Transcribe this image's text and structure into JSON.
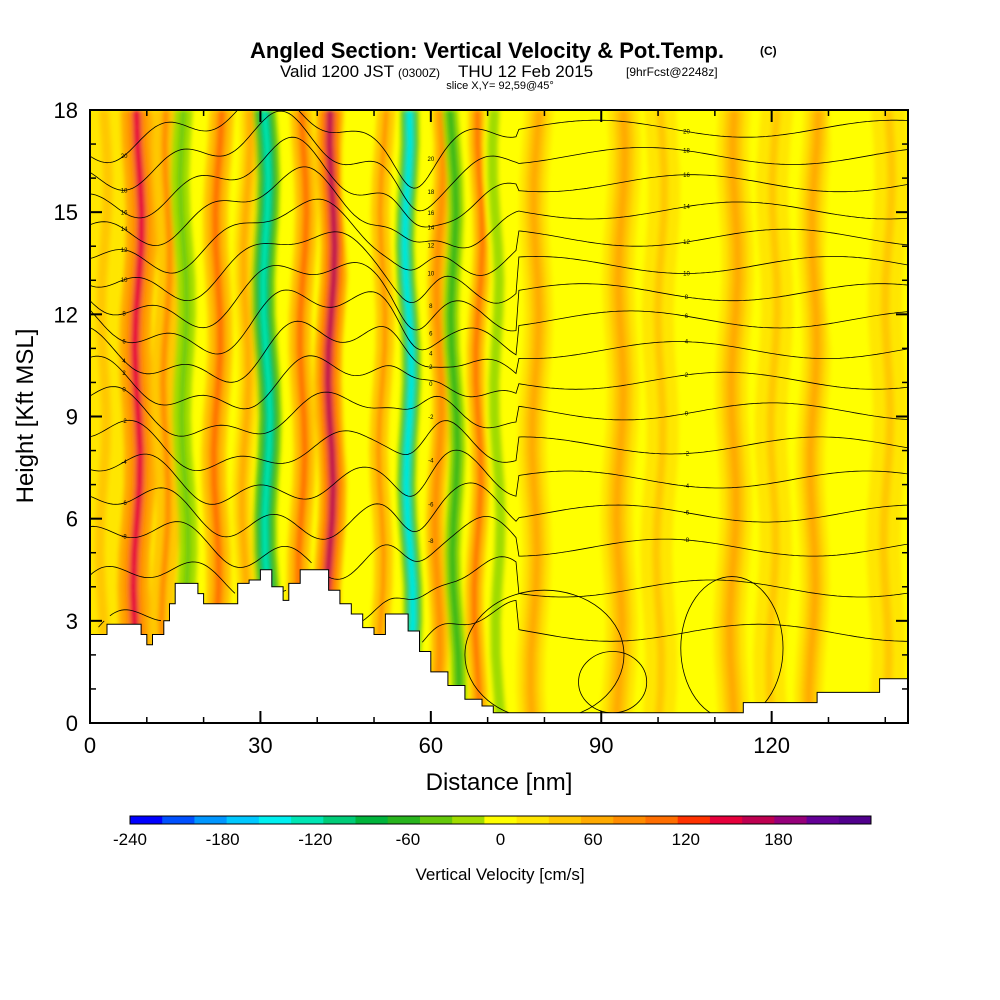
{
  "chart_data": {
    "type": "heatmap",
    "title": "Angled Section: Vertical Velocity & Pot.Temp.",
    "title_suffix": "(C)",
    "subtitle": {
      "valid": "Valid 1200 JST",
      "utc": "(0300Z)",
      "date": "THU 12 Feb 2015",
      "fcst": "[9hrFcst@2248z]"
    },
    "slice_info": "slice X,Y= 92,59@45°",
    "xlabel": "Distance [nm]",
    "ylabel": "Height [Kft MSL]",
    "xlim": [
      0,
      144
    ],
    "ylim": [
      0,
      18
    ],
    "xticks": [
      "0",
      "30",
      "60",
      "90",
      "120"
    ],
    "yticks": [
      "0",
      "3",
      "6",
      "9",
      "12",
      "15",
      "18"
    ],
    "xtick_values": [
      0,
      30,
      60,
      90,
      120
    ],
    "ytick_values": [
      0,
      3,
      6,
      9,
      12,
      15,
      18
    ],
    "minor_xticks": [
      10,
      20,
      40,
      50,
      70,
      80,
      100,
      110,
      130,
      140
    ],
    "colorbar": {
      "label": "Vertical Velocity [cm/s]",
      "range": [
        -240,
        220
      ],
      "step": 20,
      "ticks": [
        "-240",
        "-180",
        "-120",
        "-60",
        "0",
        "60",
        "120",
        "180"
      ],
      "tick_values": [
        -240,
        -180,
        -120,
        -60,
        0,
        60,
        120,
        180
      ],
      "colors": [
        "#0000ff",
        "#0050ff",
        "#0096ff",
        "#00c8ff",
        "#00f0f0",
        "#00e6b4",
        "#00cc78",
        "#00b43c",
        "#28b41e",
        "#64c80a",
        "#a0dc00",
        "#ffff00",
        "#ffe600",
        "#ffc800",
        "#ffaa00",
        "#ff8c00",
        "#ff6e00",
        "#ff3200",
        "#e6003c",
        "#be0050",
        "#96007a",
        "#640096",
        "#50008c"
      ]
    },
    "w_bands": [
      {
        "x": 2,
        "w": 3.5,
        "v": 20
      },
      {
        "x": 8,
        "w": 2.8,
        "v": 120
      },
      {
        "x": 13,
        "w": 2.2,
        "v": 60
      },
      {
        "x": 17,
        "w": 1.6,
        "v": -60
      },
      {
        "x": 22,
        "w": 2.2,
        "v": 80
      },
      {
        "x": 27,
        "w": 1.8,
        "v": 50
      },
      {
        "x": 31.5,
        "w": 2.0,
        "v": -140
      },
      {
        "x": 37,
        "w": 2.0,
        "v": 90
      },
      {
        "x": 42,
        "w": 2.4,
        "v": 140
      },
      {
        "x": 47,
        "w": 1.6,
        "v": -20
      },
      {
        "x": 51,
        "w": 1.6,
        "v": 60
      },
      {
        "x": 56.5,
        "w": 1.6,
        "v": -160
      },
      {
        "x": 61,
        "w": 1.6,
        "v": 70
      },
      {
        "x": 64.5,
        "w": 1.4,
        "v": -80
      },
      {
        "x": 68,
        "w": 1.6,
        "v": 90
      },
      {
        "x": 72,
        "w": 1.6,
        "v": -40
      },
      {
        "x": 78,
        "w": 2.5,
        "v": 40
      },
      {
        "x": 86,
        "w": 2.5,
        "v": -20
      },
      {
        "x": 93,
        "w": 2.8,
        "v": 40
      },
      {
        "x": 100,
        "w": 2.8,
        "v": 30
      },
      {
        "x": 107,
        "w": 2.5,
        "v": -10
      },
      {
        "x": 113,
        "w": 2.8,
        "v": 50
      },
      {
        "x": 120,
        "w": 2.8,
        "v": 20
      },
      {
        "x": 127,
        "w": 2.5,
        "v": 40
      },
      {
        "x": 133,
        "w": 2.5,
        "v": -20
      },
      {
        "x": 140,
        "w": 3.0,
        "v": 30
      }
    ],
    "terrain": [
      [
        0,
        2.6
      ],
      [
        3,
        2.9
      ],
      [
        7,
        2.9
      ],
      [
        9,
        2.6
      ],
      [
        10,
        2.3
      ],
      [
        11,
        2.6
      ],
      [
        13,
        3.0
      ],
      [
        14,
        3.5
      ],
      [
        15,
        4.1
      ],
      [
        18,
        4.1
      ],
      [
        19,
        3.8
      ],
      [
        20,
        3.5
      ],
      [
        25,
        3.5
      ],
      [
        26,
        4.1
      ],
      [
        28,
        4.2
      ],
      [
        30,
        4.5
      ],
      [
        32,
        4.0
      ],
      [
        34,
        3.6
      ],
      [
        35,
        4.1
      ],
      [
        37,
        4.5
      ],
      [
        41,
        4.5
      ],
      [
        42,
        3.9
      ],
      [
        44,
        3.5
      ],
      [
        46,
        3.2
      ],
      [
        48,
        2.8
      ],
      [
        50,
        2.6
      ],
      [
        52,
        3.2
      ],
      [
        54,
        3.2
      ],
      [
        56,
        2.7
      ],
      [
        58,
        2.1
      ],
      [
        60,
        1.5
      ],
      [
        63,
        1.1
      ],
      [
        66,
        0.7
      ],
      [
        69,
        0.5
      ],
      [
        71,
        0.3
      ],
      [
        85,
        0.3
      ],
      [
        105,
        0.3
      ],
      [
        114,
        0.3
      ],
      [
        115,
        0.6
      ],
      [
        127,
        0.6
      ],
      [
        128,
        0.9
      ],
      [
        138,
        0.9
      ],
      [
        139,
        1.3
      ],
      [
        144,
        1.3
      ]
    ],
    "theta_levels": [
      {
        "base": 2.5,
        "label": ""
      },
      {
        "base": 3.8,
        "label": ""
      },
      {
        "base": 5.0,
        "label": "-8"
      },
      {
        "base": 6.0,
        "label": "-6"
      },
      {
        "base": 7.0,
        "label": "-4"
      },
      {
        "base": 8.0,
        "label": "-2"
      },
      {
        "base": 9.0,
        "label": "0"
      },
      {
        "base": 9.9,
        "label": "2"
      },
      {
        "base": 10.8,
        "label": "4"
      },
      {
        "base": 11.7,
        "label": "6"
      },
      {
        "base": 12.5,
        "label": "8"
      },
      {
        "base": 13.3,
        "label": "10"
      },
      {
        "base": 14.1,
        "label": "12"
      },
      {
        "base": 14.9,
        "label": "14"
      },
      {
        "base": 15.7,
        "label": "16"
      },
      {
        "base": 16.5,
        "label": "18"
      },
      {
        "base": 17.3,
        "label": "20"
      }
    ],
    "closed_contours": [
      {
        "cx": 80,
        "cy": 2.0,
        "rx": 14,
        "ry": 1.9
      },
      {
        "cx": 92,
        "cy": 1.2,
        "rx": 6,
        "ry": 0.9
      },
      {
        "cx": 113,
        "cy": 2.2,
        "rx": 9,
        "ry": 2.1
      }
    ]
  }
}
